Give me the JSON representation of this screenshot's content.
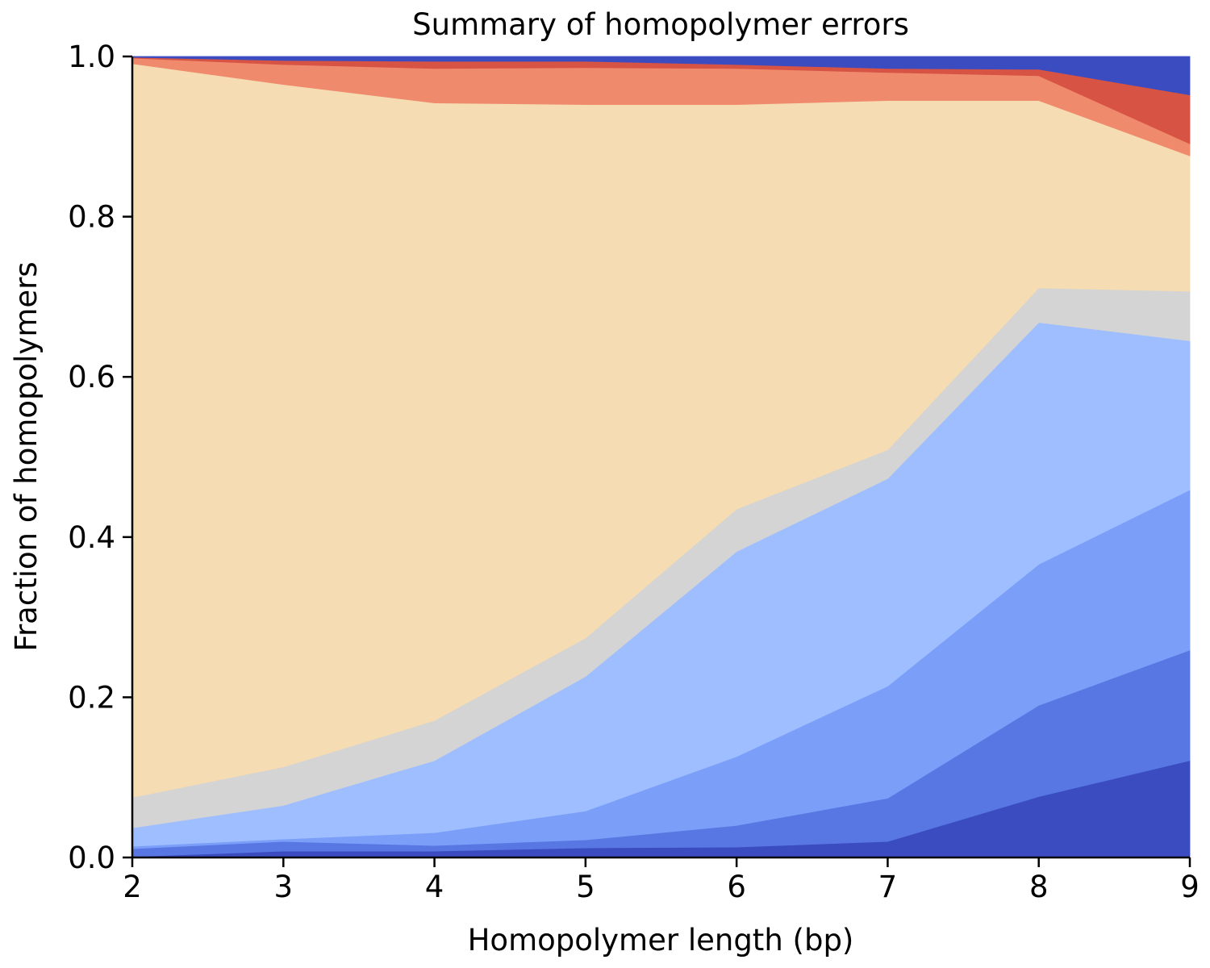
{
  "chart_data": {
    "type": "area",
    "stacked": true,
    "title": "Summary of homopolymer errors",
    "xlabel": "Homopolymer length (bp)",
    "ylabel": "Fraction of homopolymers",
    "x": [
      2,
      3,
      4,
      5,
      6,
      7,
      8,
      9
    ],
    "xlim": [
      2,
      9
    ],
    "ylim": [
      0,
      1
    ],
    "xticks": [
      "2",
      "3",
      "4",
      "5",
      "6",
      "7",
      "8",
      "9"
    ],
    "yticks": [
      "0.0",
      "0.2",
      "0.4",
      "0.6",
      "0.8",
      "1.0"
    ],
    "grid": false,
    "legend": "none",
    "series": [
      {
        "color": "#3b4cc0",
        "values": [
          0.001,
          0.008,
          0.008,
          0.012,
          0.013,
          0.02,
          0.076,
          0.121
        ]
      },
      {
        "color": "#5977e3",
        "values": [
          0.01,
          0.012,
          0.007,
          0.01,
          0.027,
          0.054,
          0.114,
          0.138
        ]
      },
      {
        "color": "#7b9ff9",
        "values": [
          0.003,
          0.003,
          0.016,
          0.036,
          0.086,
          0.14,
          0.176,
          0.2
        ]
      },
      {
        "color": "#9ebeff",
        "values": [
          0.023,
          0.042,
          0.09,
          0.168,
          0.256,
          0.259,
          0.302,
          0.186
        ]
      },
      {
        "color": "#d4d4d4",
        "values": [
          0.038,
          0.048,
          0.05,
          0.048,
          0.053,
          0.036,
          0.043,
          0.062
        ]
      },
      {
        "color": "#f5dcb2",
        "values": [
          0.916,
          0.852,
          0.771,
          0.666,
          0.505,
          0.436,
          0.234,
          0.169
        ]
      },
      {
        "color": "#f08a6c",
        "values": [
          0.007,
          0.025,
          0.043,
          0.046,
          0.045,
          0.035,
          0.031,
          0.015
        ]
      },
      {
        "color": "#d75445",
        "values": [
          0.001,
          0.005,
          0.009,
          0.008,
          0.005,
          0.005,
          0.008,
          0.061
        ]
      },
      {
        "color": "#3b4cc0",
        "values": [
          0.001,
          0.005,
          0.006,
          0.006,
          0.01,
          0.015,
          0.016,
          0.048
        ]
      }
    ]
  }
}
